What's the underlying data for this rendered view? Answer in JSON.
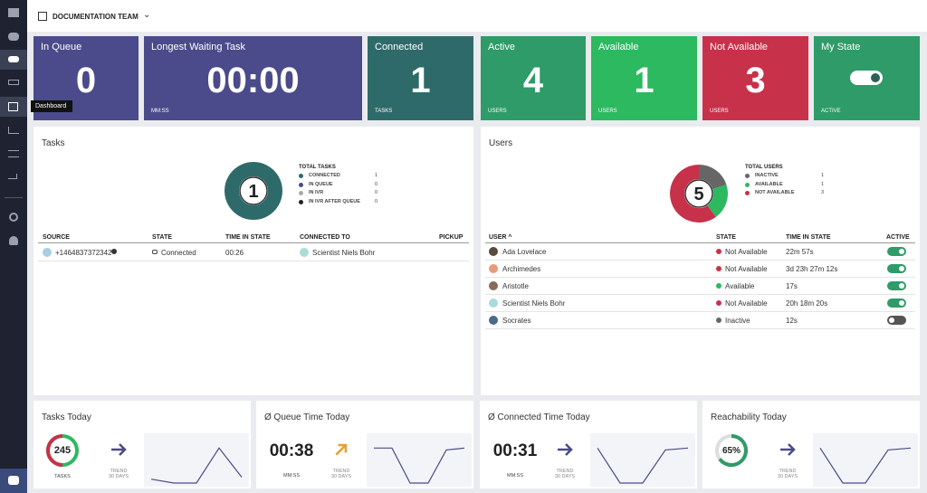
{
  "header": {
    "team": "DOCUMENTATION TEAM",
    "tooltip": "Dashboard"
  },
  "tiles": [
    {
      "title": "In Queue",
      "value": "0",
      "color": "#4b4a8b"
    },
    {
      "title": "Longest Waiting Task",
      "value": "00:00",
      "unit": "MM:SS",
      "color": "#4b4a8b"
    },
    {
      "title": "Connected",
      "value": "1",
      "unit": "TASKS",
      "color": "#2f6a6a"
    },
    {
      "title": "Active",
      "value": "4",
      "unit": "USERS",
      "color": "#2e9b68"
    },
    {
      "title": "Available",
      "value": "1",
      "unit": "USERS",
      "color": "#2cb960"
    },
    {
      "title": "Not Available",
      "value": "3",
      "unit": "USERS",
      "color": "#c8314a"
    },
    {
      "title": "My State",
      "unit": "ACTIVE",
      "color": "#2e9b68"
    }
  ],
  "tasks": {
    "title": "Tasks",
    "total": 1,
    "legend_title": "TOTAL TASKS",
    "legend": [
      {
        "label": "CONNECTED",
        "count": 1,
        "color": "#2f6a6a"
      },
      {
        "label": "IN QUEUE",
        "count": 0,
        "color": "#4b4a8b"
      },
      {
        "label": "IN IVR",
        "count": 0,
        "color": "#aaaaaa"
      },
      {
        "label": "IN IVR AFTER QUEUE",
        "count": 0,
        "color": "#222222"
      }
    ],
    "columns": [
      "SOURCE",
      "STATE",
      "TIME IN STATE",
      "CONNECTED TO",
      "PICKUP"
    ],
    "rows": [
      {
        "source": "+1464837372342",
        "state": "Connected",
        "time": "00:26",
        "connected_to": "Scientist Niels Bohr"
      }
    ]
  },
  "users": {
    "title": "Users",
    "total": 5,
    "legend_title": "TOTAL USERS",
    "legend": [
      {
        "label": "INACTIVE",
        "count": 1,
        "color": "#666666"
      },
      {
        "label": "AVAILABLE",
        "count": 1,
        "color": "#2cb960"
      },
      {
        "label": "NOT AVAILABLE",
        "count": 3,
        "color": "#c8314a"
      }
    ],
    "columns": [
      "USER ^",
      "STATE",
      "TIME IN STATE",
      "ACTIVE"
    ],
    "rows": [
      {
        "name": "Ada Lovelace",
        "state": "Not Available",
        "color": "#c8314a",
        "time": "22m 57s",
        "active": true
      },
      {
        "name": "Archimedes",
        "state": "Not Available",
        "color": "#c8314a",
        "time": "3d 23h 27m 12s",
        "active": true
      },
      {
        "name": "Aristotle",
        "state": "Available",
        "color": "#2cb960",
        "time": "17s",
        "active": true
      },
      {
        "name": "Scientist Niels Bohr",
        "state": "Not Available",
        "color": "#c8314a",
        "time": "20h 18m 20s",
        "active": true
      },
      {
        "name": "Socrates",
        "state": "Inactive",
        "color": "#666666",
        "time": "12s",
        "active": false
      }
    ]
  },
  "today": [
    {
      "title": "Tasks Today",
      "value": "245",
      "unit": "TASKS",
      "trend": "TREND",
      "trend_period": "30 DAYS",
      "spark": [
        0.4,
        0,
        0,
        3.6,
        0.6
      ],
      "spark_ylim": [
        0,
        4
      ]
    },
    {
      "title": "Ø Queue Time Today",
      "value": "00:38",
      "unit": "MM:SS",
      "trend": "TREND",
      "trend_period": "30 DAYS",
      "spark": [
        3.6,
        3.6,
        0,
        0,
        3.4,
        3.6
      ],
      "spark_ylim": [
        0,
        4
      ]
    },
    {
      "title": "Ø Connected Time Today",
      "value": "00:31",
      "unit": "MM:SS",
      "trend": "TREND",
      "trend_period": "30 DAYS",
      "spark": [
        3.6,
        0,
        0,
        3.4,
        3.6
      ],
      "spark_ylim": [
        0,
        4
      ]
    },
    {
      "title": "Reachability Today",
      "value": {
        "value": 65,
        "label": "65%"
      },
      "trend": "TREND",
      "trend_period": "30 DAYS",
      "spark": [
        3.6,
        0,
        0,
        3.4,
        3.6
      ],
      "spark_ylim": [
        0,
        4
      ]
    }
  ]
}
